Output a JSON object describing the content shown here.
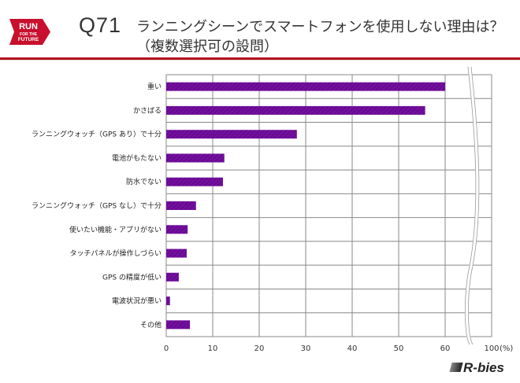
{
  "header": {
    "logo_text": [
      "RUN",
      "FOR THE",
      "FUTURE"
    ],
    "question_no": "Q71",
    "title": "ランニングシーンでスマートフォンを使用しない理由は？",
    "subtitle": "（複数選択可の設問）",
    "accent_color": "#c8102e"
  },
  "brand": "R-bies",
  "chart_data": {
    "type": "bar",
    "orientation": "horizontal",
    "categories": [
      "重い",
      "かさばる",
      "ランニングウォッチ（GPS あり）で十分",
      "電池がもたない",
      "防水でない",
      "ランニングウォッチ（GPS なし）で十分",
      "使いたい機能・アプリがない",
      "タッチパネルが操作しづらい",
      "GPS の精度が低い",
      "電波状況が悪い",
      "その他"
    ],
    "values": [
      60.0,
      55.7,
      28.1,
      12.5,
      12.2,
      6.4,
      4.6,
      4.4,
      2.7,
      0.8,
      5.1
    ],
    "xlim": [
      0,
      100
    ],
    "axis_break": [
      60,
      100
    ],
    "xticks": [
      "0",
      "10",
      "20",
      "30",
      "40",
      "50",
      "60",
      "100"
    ],
    "xunit": "(%)",
    "bar_color": "#6a0a94",
    "grid": true
  }
}
